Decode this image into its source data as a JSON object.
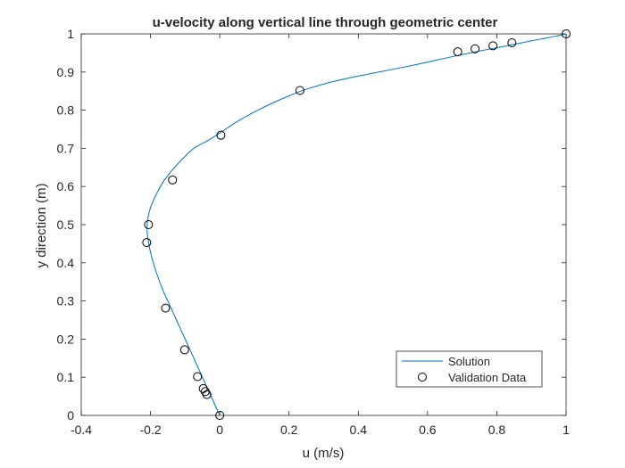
{
  "chart_data": {
    "type": "line",
    "title": "u-velocity along vertical line through geometric center",
    "xlabel": "u (m/s)",
    "ylabel": "y direction (m)",
    "xlim": [
      -0.4,
      1
    ],
    "ylim": [
      0,
      1
    ],
    "xticks": [
      -0.4,
      -0.2,
      0,
      0.2,
      0.4,
      0.6,
      0.8,
      1
    ],
    "yticks": [
      0,
      0.1,
      0.2,
      0.3,
      0.4,
      0.5,
      0.6,
      0.7,
      0.8,
      0.9,
      1
    ],
    "xtick_labels": [
      "-0.4",
      "-0.2",
      "0",
      "0.2",
      "0.4",
      "0.6",
      "0.8",
      "1"
    ],
    "ytick_labels": [
      "0",
      "0.1",
      "0.2",
      "0.3",
      "0.4",
      "0.5",
      "0.6",
      "0.7",
      "0.8",
      "0.9",
      "1"
    ],
    "grid": false,
    "legend_position": "bottom-right",
    "series": [
      {
        "name": "Solution",
        "style": "line",
        "color": "#0072bd",
        "x": [
          0,
          -0.02,
          -0.05,
          -0.08,
          -0.11,
          -0.14,
          -0.165,
          -0.185,
          -0.198,
          -0.207,
          -0.21,
          -0.207,
          -0.198,
          -0.183,
          -0.165,
          -0.14,
          -0.11,
          -0.075,
          -0.035,
          0,
          0.05,
          0.11,
          0.18,
          0.25,
          0.35,
          0.46,
          0.57,
          0.67,
          0.75,
          0.82,
          0.88,
          0.93,
          0.97,
          1
        ],
        "y": [
          0,
          0.04,
          0.1,
          0.16,
          0.22,
          0.28,
          0.33,
          0.38,
          0.42,
          0.46,
          0.49,
          0.52,
          0.55,
          0.58,
          0.61,
          0.64,
          0.67,
          0.7,
          0.72,
          0.74,
          0.77,
          0.8,
          0.83,
          0.855,
          0.88,
          0.9,
          0.92,
          0.94,
          0.955,
          0.967,
          0.978,
          0.987,
          0.994,
          1
        ]
      },
      {
        "name": "Validation Data",
        "style": "marker",
        "marker": "circle",
        "color": "#000000",
        "x": [
          1,
          0.8435,
          0.7889,
          0.7372,
          0.6872,
          0.2315,
          0.0033,
          -0.1364,
          -0.2058,
          -0.2109,
          -0.1566,
          -0.1015,
          -0.0643,
          -0.0478,
          -0.0419,
          -0.0372,
          0
        ],
        "y": [
          1,
          0.9766,
          0.9688,
          0.9609,
          0.9531,
          0.8516,
          0.7344,
          0.6172,
          0.5,
          0.4531,
          0.2813,
          0.1719,
          0.1016,
          0.0703,
          0.0625,
          0.0547,
          0
        ]
      }
    ]
  }
}
